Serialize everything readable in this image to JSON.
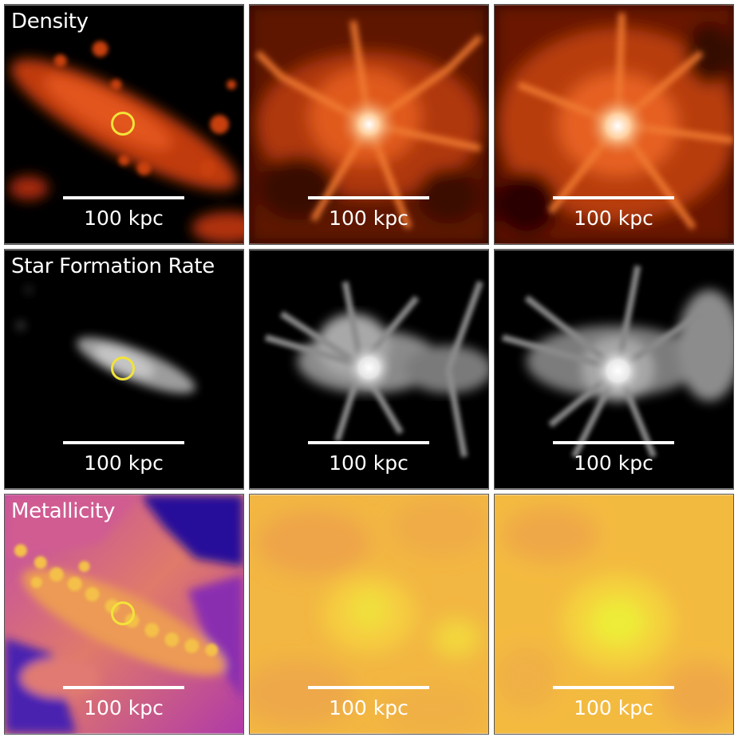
{
  "rows": [
    {
      "label": "Density",
      "colormap": "gist_heat"
    },
    {
      "label": "Star Formation Rate",
      "colormap": "greyscale"
    },
    {
      "label": "Metallicity",
      "colormap": "plasma"
    }
  ],
  "scalebar_label": "100 kpc",
  "marker": {
    "description": "yellow circle",
    "color": "#f2e33a"
  },
  "colors": {
    "density_bg": "#000000",
    "density_low": "#8a1a05",
    "density_mid": "#e0551a",
    "density_high": "#ffd9b0",
    "sfr_bg": "#000000",
    "sfr_mid": "#9a9a9a",
    "sfr_high": "#f5f5f5",
    "metal_low": "#200f8c",
    "metal_mid": "#b73cb0",
    "metal_high": "#f4c13a",
    "metal_top": "#eef03a"
  }
}
